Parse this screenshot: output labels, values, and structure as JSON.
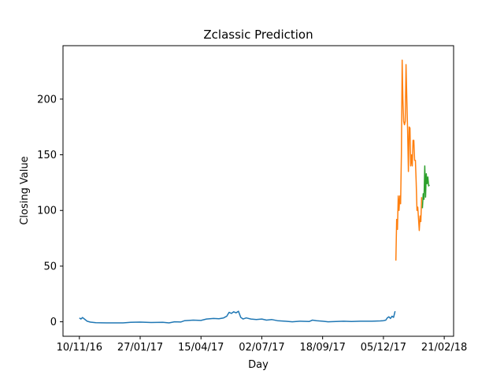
{
  "chart_data": {
    "type": "line",
    "title": "Zclassic Prediction",
    "xlabel": "Day",
    "ylabel": "Closing Value",
    "x_axis": "date",
    "xlim": [
      "2016-10-20",
      "2018-03-05"
    ],
    "ylim": [
      -13,
      248
    ],
    "xticks": [
      {
        "date": "2016-11-10",
        "label": "10/11/16"
      },
      {
        "date": "2017-01-27",
        "label": "27/01/17"
      },
      {
        "date": "2017-04-15",
        "label": "15/04/17"
      },
      {
        "date": "2017-07-02",
        "label": "02/07/17"
      },
      {
        "date": "2017-09-18",
        "label": "18/09/17"
      },
      {
        "date": "2017-12-05",
        "label": "05/12/17"
      },
      {
        "date": "2018-02-21",
        "label": "21/02/18"
      }
    ],
    "yticks": [
      0,
      50,
      100,
      150,
      200
    ],
    "grid": false,
    "legend": "none",
    "series": [
      {
        "color": "#1f77b4",
        "points": [
          [
            "2016-11-10",
            3.5
          ],
          [
            "2016-11-12",
            2.5
          ],
          [
            "2016-11-14",
            3.8
          ],
          [
            "2016-11-17",
            2.2
          ],
          [
            "2016-11-20",
            0.5
          ],
          [
            "2016-11-24",
            -0.3
          ],
          [
            "2016-12-01",
            -0.8
          ],
          [
            "2016-12-15",
            -1.0
          ],
          [
            "2017-01-05",
            -1.0
          ],
          [
            "2017-01-15",
            -0.5
          ],
          [
            "2017-01-27",
            -0.3
          ],
          [
            "2017-02-10",
            -0.6
          ],
          [
            "2017-02-25",
            -0.5
          ],
          [
            "2017-03-05",
            -1.0
          ],
          [
            "2017-03-12",
            0.0
          ],
          [
            "2017-03-20",
            -0.2
          ],
          [
            "2017-03-25",
            1.0
          ],
          [
            "2017-04-05",
            1.5
          ],
          [
            "2017-04-15",
            1.2
          ],
          [
            "2017-04-22",
            2.5
          ],
          [
            "2017-05-01",
            3.0
          ],
          [
            "2017-05-08",
            2.8
          ],
          [
            "2017-05-14",
            3.5
          ],
          [
            "2017-05-18",
            5.0
          ],
          [
            "2017-05-21",
            8.5
          ],
          [
            "2017-05-24",
            7.5
          ],
          [
            "2017-05-27",
            9.0
          ],
          [
            "2017-05-30",
            8.0
          ],
          [
            "2017-06-02",
            9.5
          ],
          [
            "2017-06-05",
            4.0
          ],
          [
            "2017-06-08",
            2.5
          ],
          [
            "2017-06-12",
            3.5
          ],
          [
            "2017-06-18",
            2.5
          ],
          [
            "2017-06-25",
            2.0
          ],
          [
            "2017-07-02",
            2.5
          ],
          [
            "2017-07-08",
            1.5
          ],
          [
            "2017-07-15",
            2.0
          ],
          [
            "2017-07-22",
            1.0
          ],
          [
            "2017-08-01",
            0.5
          ],
          [
            "2017-08-10",
            0.0
          ],
          [
            "2017-08-20",
            0.5
          ],
          [
            "2017-09-01",
            0.3
          ],
          [
            "2017-09-05",
            1.5
          ],
          [
            "2017-09-10",
            1.0
          ],
          [
            "2017-09-18",
            0.5
          ],
          [
            "2017-09-25",
            0.0
          ],
          [
            "2017-10-05",
            0.3
          ],
          [
            "2017-10-15",
            0.5
          ],
          [
            "2017-10-25",
            0.3
          ],
          [
            "2017-11-05",
            0.5
          ],
          [
            "2017-11-20",
            0.5
          ],
          [
            "2017-12-01",
            0.8
          ],
          [
            "2017-12-05",
            1.0
          ],
          [
            "2017-12-08",
            1.5
          ],
          [
            "2017-12-10",
            3.5
          ],
          [
            "2017-12-12",
            4.5
          ],
          [
            "2017-12-14",
            3.0
          ],
          [
            "2017-12-16",
            5.0
          ],
          [
            "2017-12-18",
            4.0
          ],
          [
            "2017-12-20",
            9.5
          ]
        ]
      },
      {
        "color": "#ff7f0e",
        "points": [
          [
            "2017-12-21",
            55
          ],
          [
            "2017-12-22",
            92
          ],
          [
            "2017-12-23",
            83
          ],
          [
            "2017-12-24",
            113
          ],
          [
            "2017-12-25",
            100
          ],
          [
            "2017-12-26",
            113
          ],
          [
            "2017-12-27",
            106
          ],
          [
            "2017-12-28",
            150
          ],
          [
            "2017-12-29",
            235
          ],
          [
            "2017-12-30",
            200
          ],
          [
            "2017-12-31",
            180
          ],
          [
            "2018-01-01",
            177
          ],
          [
            "2018-01-02",
            180
          ],
          [
            "2018-01-03",
            231
          ],
          [
            "2018-01-04",
            200
          ],
          [
            "2018-01-05",
            172
          ],
          [
            "2018-01-06",
            135
          ],
          [
            "2018-01-07",
            175
          ],
          [
            "2018-01-08",
            174
          ],
          [
            "2018-01-09",
            140
          ],
          [
            "2018-01-10",
            150
          ],
          [
            "2018-01-11",
            140
          ],
          [
            "2018-01-12",
            163
          ],
          [
            "2018-01-13",
            163
          ],
          [
            "2018-01-14",
            145
          ],
          [
            "2018-01-15",
            145
          ],
          [
            "2018-01-16",
            125
          ],
          [
            "2018-01-17",
            100
          ],
          [
            "2018-01-18",
            103
          ],
          [
            "2018-01-19",
            93
          ],
          [
            "2018-01-20",
            82
          ],
          [
            "2018-01-21",
            95
          ],
          [
            "2018-01-22",
            90
          ],
          [
            "2018-01-23",
            112
          ]
        ]
      },
      {
        "color": "#2ca02c",
        "points": [
          [
            "2018-01-24",
            102
          ],
          [
            "2018-01-25",
            115
          ],
          [
            "2018-01-26",
            110
          ],
          [
            "2018-01-27",
            140
          ],
          [
            "2018-01-28",
            112
          ],
          [
            "2018-01-29",
            133
          ],
          [
            "2018-01-30",
            124
          ],
          [
            "2018-01-31",
            130
          ],
          [
            "2018-02-01",
            122
          ],
          [
            "2018-02-02",
            123
          ]
        ]
      }
    ]
  }
}
